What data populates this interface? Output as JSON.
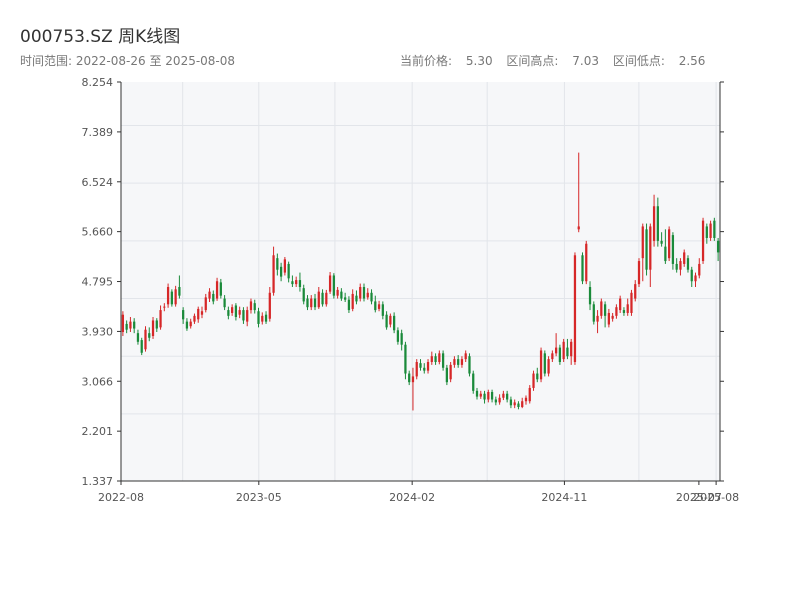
{
  "header": {
    "title": "000753.SZ 周K线图",
    "range_label": "时间范围:",
    "start_date": "2022-08-26",
    "range_sep": "至",
    "end_date": "2025-08-08",
    "current_label": "当前价格:",
    "current_price": "5.30",
    "high_label": "区间高点:",
    "high_value": "7.03",
    "low_label": "区间低点:",
    "low_value": "2.56"
  },
  "colors": {
    "up": "#d62728",
    "down": "#1a8a3a",
    "background": "#f6f7f9",
    "grid": "#e2e5ea"
  },
  "chart_data": {
    "type": "candlestick",
    "yticks": [
      "1.337",
      "2.201",
      "3.066",
      "3.930",
      "4.795",
      "5.660",
      "6.524",
      "7.389",
      "8.254"
    ],
    "xticks": [
      "2022-08",
      "2023-05",
      "2024-02",
      "2024-11",
      "2025-07",
      "2025-08"
    ],
    "ylim": [
      1.337,
      8.254
    ],
    "xlim": [
      "2022-08-26",
      "2025-08-08"
    ],
    "grid": true,
    "candles": [
      {
        "o": 3.92,
        "c": 4.22,
        "h": 4.28,
        "l": 3.85
      },
      {
        "o": 4.06,
        "c": 3.96,
        "h": 4.12,
        "l": 3.9
      },
      {
        "o": 3.98,
        "c": 4.1,
        "h": 4.18,
        "l": 3.92
      },
      {
        "o": 4.1,
        "c": 3.98,
        "h": 4.16,
        "l": 3.9
      },
      {
        "o": 3.9,
        "c": 3.75,
        "h": 3.96,
        "l": 3.7
      },
      {
        "o": 3.78,
        "c": 3.56,
        "h": 3.82,
        "l": 3.52
      },
      {
        "o": 3.62,
        "c": 3.96,
        "h": 4.02,
        "l": 3.58
      },
      {
        "o": 3.9,
        "c": 3.82,
        "h": 4.0,
        "l": 3.76
      },
      {
        "o": 3.85,
        "c": 4.12,
        "h": 4.18,
        "l": 3.8
      },
      {
        "o": 4.12,
        "c": 3.98,
        "h": 4.16,
        "l": 3.92
      },
      {
        "o": 4.0,
        "c": 4.3,
        "h": 4.38,
        "l": 3.96
      },
      {
        "o": 4.35,
        "c": 4.36,
        "h": 4.42,
        "l": 4.28
      },
      {
        "o": 4.4,
        "c": 4.7,
        "h": 4.76,
        "l": 4.34
      },
      {
        "o": 4.62,
        "c": 4.4,
        "h": 4.66,
        "l": 4.36
      },
      {
        "o": 4.4,
        "c": 4.66,
        "h": 4.72,
        "l": 4.36
      },
      {
        "o": 4.7,
        "c": 4.55,
        "h": 4.9,
        "l": 4.5
      },
      {
        "o": 4.3,
        "c": 4.14,
        "h": 4.35,
        "l": 4.06
      },
      {
        "o": 4.1,
        "c": 3.98,
        "h": 4.16,
        "l": 3.94
      },
      {
        "o": 4.02,
        "c": 4.1,
        "h": 4.15,
        "l": 3.98
      },
      {
        "o": 4.1,
        "c": 4.2,
        "h": 4.24,
        "l": 4.06
      },
      {
        "o": 4.14,
        "c": 4.32,
        "h": 4.36,
        "l": 4.08
      },
      {
        "o": 4.22,
        "c": 4.28,
        "h": 4.36,
        "l": 4.16
      },
      {
        "o": 4.3,
        "c": 4.52,
        "h": 4.58,
        "l": 4.26
      },
      {
        "o": 4.5,
        "c": 4.62,
        "h": 4.68,
        "l": 4.44
      },
      {
        "o": 4.58,
        "c": 4.45,
        "h": 4.64,
        "l": 4.4
      },
      {
        "o": 4.5,
        "c": 4.8,
        "h": 4.86,
        "l": 4.46
      },
      {
        "o": 4.78,
        "c": 4.55,
        "h": 4.84,
        "l": 4.5
      },
      {
        "o": 4.5,
        "c": 4.35,
        "h": 4.56,
        "l": 4.3
      },
      {
        "o": 4.3,
        "c": 4.2,
        "h": 4.36,
        "l": 4.14
      },
      {
        "o": 4.25,
        "c": 4.35,
        "h": 4.4,
        "l": 4.2
      },
      {
        "o": 4.38,
        "c": 4.18,
        "h": 4.42,
        "l": 4.12
      },
      {
        "o": 4.22,
        "c": 4.3,
        "h": 4.36,
        "l": 4.16
      },
      {
        "o": 4.3,
        "c": 4.12,
        "h": 4.35,
        "l": 4.06
      },
      {
        "o": 4.1,
        "c": 4.3,
        "h": 4.36,
        "l": 4.02
      },
      {
        "o": 4.3,
        "c": 4.45,
        "h": 4.5,
        "l": 4.24
      },
      {
        "o": 4.42,
        "c": 4.3,
        "h": 4.48,
        "l": 4.24
      },
      {
        "o": 4.28,
        "c": 4.06,
        "h": 4.34,
        "l": 4.0
      },
      {
        "o": 4.1,
        "c": 4.2,
        "h": 4.26,
        "l": 4.05
      },
      {
        "o": 4.22,
        "c": 4.1,
        "h": 4.28,
        "l": 4.06
      },
      {
        "o": 4.15,
        "c": 4.6,
        "h": 4.7,
        "l": 4.1
      },
      {
        "o": 4.6,
        "c": 5.25,
        "h": 5.4,
        "l": 4.55
      },
      {
        "o": 5.2,
        "c": 5.0,
        "h": 5.28,
        "l": 4.9
      },
      {
        "o": 5.05,
        "c": 4.88,
        "h": 5.12,
        "l": 4.8
      },
      {
        "o": 4.95,
        "c": 5.18,
        "h": 5.22,
        "l": 4.9
      },
      {
        "o": 5.1,
        "c": 4.85,
        "h": 5.14,
        "l": 4.78
      },
      {
        "o": 4.8,
        "c": 4.75,
        "h": 4.9,
        "l": 4.7
      },
      {
        "o": 4.75,
        "c": 4.82,
        "h": 4.88,
        "l": 4.7
      },
      {
        "o": 4.82,
        "c": 4.7,
        "h": 4.95,
        "l": 4.62
      },
      {
        "o": 4.68,
        "c": 4.45,
        "h": 4.74,
        "l": 4.4
      },
      {
        "o": 4.5,
        "c": 4.35,
        "h": 4.56,
        "l": 4.3
      },
      {
        "o": 4.35,
        "c": 4.5,
        "h": 4.56,
        "l": 4.3
      },
      {
        "o": 4.5,
        "c": 4.35,
        "h": 4.58,
        "l": 4.3
      },
      {
        "o": 4.35,
        "c": 4.62,
        "h": 4.7,
        "l": 4.32
      },
      {
        "o": 4.6,
        "c": 4.4,
        "h": 4.66,
        "l": 4.36
      },
      {
        "o": 4.4,
        "c": 4.6,
        "h": 4.65,
        "l": 4.36
      },
      {
        "o": 4.62,
        "c": 4.9,
        "h": 4.96,
        "l": 4.58
      },
      {
        "o": 4.9,
        "c": 4.55,
        "h": 4.94,
        "l": 4.5
      },
      {
        "o": 4.55,
        "c": 4.65,
        "h": 4.7,
        "l": 4.5
      },
      {
        "o": 4.62,
        "c": 4.5,
        "h": 4.68,
        "l": 4.46
      },
      {
        "o": 4.52,
        "c": 4.48,
        "h": 4.6,
        "l": 4.44
      },
      {
        "o": 4.48,
        "c": 4.3,
        "h": 4.54,
        "l": 4.25
      },
      {
        "o": 4.32,
        "c": 4.58,
        "h": 4.66,
        "l": 4.28
      },
      {
        "o": 4.55,
        "c": 4.45,
        "h": 4.64,
        "l": 4.4
      },
      {
        "o": 4.5,
        "c": 4.7,
        "h": 4.76,
        "l": 4.45
      },
      {
        "o": 4.7,
        "c": 4.5,
        "h": 4.76,
        "l": 4.45
      },
      {
        "o": 4.52,
        "c": 4.6,
        "h": 4.68,
        "l": 4.48
      },
      {
        "o": 4.6,
        "c": 4.45,
        "h": 4.66,
        "l": 4.4
      },
      {
        "o": 4.45,
        "c": 4.3,
        "h": 4.55,
        "l": 4.26
      },
      {
        "o": 4.32,
        "c": 4.4,
        "h": 4.46,
        "l": 4.28
      },
      {
        "o": 4.4,
        "c": 4.2,
        "h": 4.45,
        "l": 4.14
      },
      {
        "o": 4.22,
        "c": 4.0,
        "h": 4.28,
        "l": 3.96
      },
      {
        "o": 4.05,
        "c": 4.2,
        "h": 4.24,
        "l": 4.0
      },
      {
        "o": 4.2,
        "c": 3.95,
        "h": 4.26,
        "l": 3.9
      },
      {
        "o": 3.95,
        "c": 3.75,
        "h": 4.0,
        "l": 3.7
      },
      {
        "o": 3.9,
        "c": 3.7,
        "h": 3.96,
        "l": 3.6
      },
      {
        "o": 3.7,
        "c": 3.2,
        "h": 3.75,
        "l": 3.1
      },
      {
        "o": 3.2,
        "c": 3.05,
        "h": 3.25,
        "l": 3.0
      },
      {
        "o": 3.05,
        "c": 3.15,
        "h": 3.3,
        "l": 2.56
      },
      {
        "o": 3.15,
        "c": 3.4,
        "h": 3.45,
        "l": 3.1
      },
      {
        "o": 3.38,
        "c": 3.3,
        "h": 3.45,
        "l": 3.25
      },
      {
        "o": 3.3,
        "c": 3.25,
        "h": 3.38,
        "l": 3.2
      },
      {
        "o": 3.25,
        "c": 3.4,
        "h": 3.45,
        "l": 3.2
      },
      {
        "o": 3.4,
        "c": 3.5,
        "h": 3.58,
        "l": 3.35
      },
      {
        "o": 3.5,
        "c": 3.4,
        "h": 3.55,
        "l": 3.35
      },
      {
        "o": 3.4,
        "c": 3.55,
        "h": 3.6,
        "l": 3.36
      },
      {
        "o": 3.55,
        "c": 3.3,
        "h": 3.6,
        "l": 3.25
      },
      {
        "o": 3.3,
        "c": 3.05,
        "h": 3.35,
        "l": 3.0
      },
      {
        "o": 3.1,
        "c": 3.35,
        "h": 3.4,
        "l": 3.05
      },
      {
        "o": 3.35,
        "c": 3.45,
        "h": 3.5,
        "l": 3.3
      },
      {
        "o": 3.45,
        "c": 3.35,
        "h": 3.52,
        "l": 3.3
      },
      {
        "o": 3.35,
        "c": 3.45,
        "h": 3.5,
        "l": 3.3
      },
      {
        "o": 3.45,
        "c": 3.55,
        "h": 3.6,
        "l": 3.4
      },
      {
        "o": 3.5,
        "c": 3.2,
        "h": 3.55,
        "l": 3.15
      },
      {
        "o": 3.2,
        "c": 2.9,
        "h": 3.25,
        "l": 2.85
      },
      {
        "o": 2.9,
        "c": 2.8,
        "h": 2.95,
        "l": 2.75
      },
      {
        "o": 2.8,
        "c": 2.85,
        "h": 2.9,
        "l": 2.76
      },
      {
        "o": 2.85,
        "c": 2.75,
        "h": 2.9,
        "l": 2.68
      },
      {
        "o": 2.75,
        "c": 2.88,
        "h": 2.92,
        "l": 2.7
      },
      {
        "o": 2.88,
        "c": 2.75,
        "h": 2.92,
        "l": 2.7
      },
      {
        "o": 2.75,
        "c": 2.7,
        "h": 2.8,
        "l": 2.65
      },
      {
        "o": 2.7,
        "c": 2.78,
        "h": 2.84,
        "l": 2.66
      },
      {
        "o": 2.78,
        "c": 2.85,
        "h": 2.9,
        "l": 2.74
      },
      {
        "o": 2.85,
        "c": 2.75,
        "h": 2.9,
        "l": 2.7
      },
      {
        "o": 2.75,
        "c": 2.65,
        "h": 2.8,
        "l": 2.6
      },
      {
        "o": 2.65,
        "c": 2.7,
        "h": 2.75,
        "l": 2.6
      },
      {
        "o": 2.68,
        "c": 2.62,
        "h": 2.72,
        "l": 2.58
      },
      {
        "o": 2.62,
        "c": 2.72,
        "h": 2.78,
        "l": 2.6
      },
      {
        "o": 2.72,
        "c": 2.78,
        "h": 2.82,
        "l": 2.66
      },
      {
        "o": 2.72,
        "c": 2.95,
        "h": 3.0,
        "l": 2.68
      },
      {
        "o": 2.95,
        "c": 3.2,
        "h": 3.25,
        "l": 2.9
      },
      {
        "o": 3.2,
        "c": 3.1,
        "h": 3.3,
        "l": 3.05
      },
      {
        "o": 3.1,
        "c": 3.6,
        "h": 3.65,
        "l": 3.05
      },
      {
        "o": 3.55,
        "c": 3.2,
        "h": 3.6,
        "l": 3.15
      },
      {
        "o": 3.2,
        "c": 3.45,
        "h": 3.5,
        "l": 3.15
      },
      {
        "o": 3.45,
        "c": 3.55,
        "h": 3.6,
        "l": 3.4
      },
      {
        "o": 3.55,
        "c": 3.65,
        "h": 3.9,
        "l": 3.5
      },
      {
        "o": 3.65,
        "c": 3.4,
        "h": 3.7,
        "l": 3.35
      },
      {
        "o": 3.45,
        "c": 3.75,
        "h": 3.8,
        "l": 3.4
      },
      {
        "o": 3.65,
        "c": 3.5,
        "h": 3.8,
        "l": 3.45
      },
      {
        "o": 3.5,
        "c": 3.75,
        "h": 3.8,
        "l": 3.35
      },
      {
        "o": 3.4,
        "c": 5.25,
        "h": 5.3,
        "l": 3.35
      },
      {
        "o": 5.7,
        "c": 5.75,
        "h": 7.03,
        "l": 5.65
      },
      {
        "o": 5.25,
        "c": 4.8,
        "h": 5.3,
        "l": 4.75
      },
      {
        "o": 4.8,
        "c": 5.45,
        "h": 5.5,
        "l": 4.75
      },
      {
        "o": 4.7,
        "c": 4.4,
        "h": 4.8,
        "l": 4.3
      },
      {
        "o": 4.4,
        "c": 4.1,
        "h": 4.45,
        "l": 4.05
      },
      {
        "o": 4.1,
        "c": 4.2,
        "h": 4.3,
        "l": 3.9
      },
      {
        "o": 4.2,
        "c": 4.45,
        "h": 4.5,
        "l": 4.15
      },
      {
        "o": 4.4,
        "c": 4.2,
        "h": 4.45,
        "l": 4.0
      },
      {
        "o": 4.05,
        "c": 4.25,
        "h": 4.32,
        "l": 4.0
      },
      {
        "o": 4.15,
        "c": 4.2,
        "h": 4.25,
        "l": 4.1
      },
      {
        "o": 4.2,
        "c": 4.35,
        "h": 4.4,
        "l": 4.15
      },
      {
        "o": 4.3,
        "c": 4.5,
        "h": 4.55,
        "l": 4.25
      },
      {
        "o": 4.3,
        "c": 4.25,
        "h": 4.35,
        "l": 4.2
      },
      {
        "o": 4.25,
        "c": 4.4,
        "h": 4.5,
        "l": 4.2
      },
      {
        "o": 4.25,
        "c": 4.6,
        "h": 4.65,
        "l": 4.2
      },
      {
        "o": 4.5,
        "c": 4.75,
        "h": 4.82,
        "l": 4.45
      },
      {
        "o": 4.75,
        "c": 5.15,
        "h": 5.2,
        "l": 4.7
      },
      {
        "o": 5.2,
        "c": 5.75,
        "h": 5.8,
        "l": 4.8
      },
      {
        "o": 5.7,
        "c": 5.0,
        "h": 5.8,
        "l": 4.9
      },
      {
        "o": 5.0,
        "c": 5.75,
        "h": 5.8,
        "l": 4.7
      },
      {
        "o": 5.5,
        "c": 6.1,
        "h": 6.3,
        "l": 5.4
      },
      {
        "o": 6.1,
        "c": 5.5,
        "h": 6.25,
        "l": 5.4
      },
      {
        "o": 5.5,
        "c": 5.45,
        "h": 5.65,
        "l": 5.4
      },
      {
        "o": 5.4,
        "c": 5.15,
        "h": 5.7,
        "l": 5.1
      },
      {
        "o": 5.2,
        "c": 5.7,
        "h": 5.75,
        "l": 5.15
      },
      {
        "o": 5.6,
        "c": 5.1,
        "h": 5.65,
        "l": 5.0
      },
      {
        "o": 5.1,
        "c": 5.0,
        "h": 5.2,
        "l": 4.95
      },
      {
        "o": 5.0,
        "c": 5.15,
        "h": 5.2,
        "l": 4.9
      },
      {
        "o": 5.1,
        "c": 5.3,
        "h": 5.35,
        "l": 5.05
      },
      {
        "o": 5.2,
        "c": 5.0,
        "h": 5.25,
        "l": 4.95
      },
      {
        "o": 5.0,
        "c": 4.8,
        "h": 5.05,
        "l": 4.7
      },
      {
        "o": 4.8,
        "c": 4.9,
        "h": 4.95,
        "l": 4.7
      },
      {
        "o": 4.9,
        "c": 5.1,
        "h": 5.2,
        "l": 4.85
      },
      {
        "o": 5.15,
        "c": 5.85,
        "h": 5.9,
        "l": 5.1
      },
      {
        "o": 5.75,
        "c": 5.55,
        "h": 5.8,
        "l": 5.45
      },
      {
        "o": 5.55,
        "c": 5.8,
        "h": 5.85,
        "l": 5.5
      },
      {
        "o": 5.85,
        "c": 5.55,
        "h": 5.9,
        "l": 5.5
      },
      {
        "o": 5.5,
        "c": 5.3,
        "h": 5.55,
        "l": 5.15
      }
    ]
  }
}
